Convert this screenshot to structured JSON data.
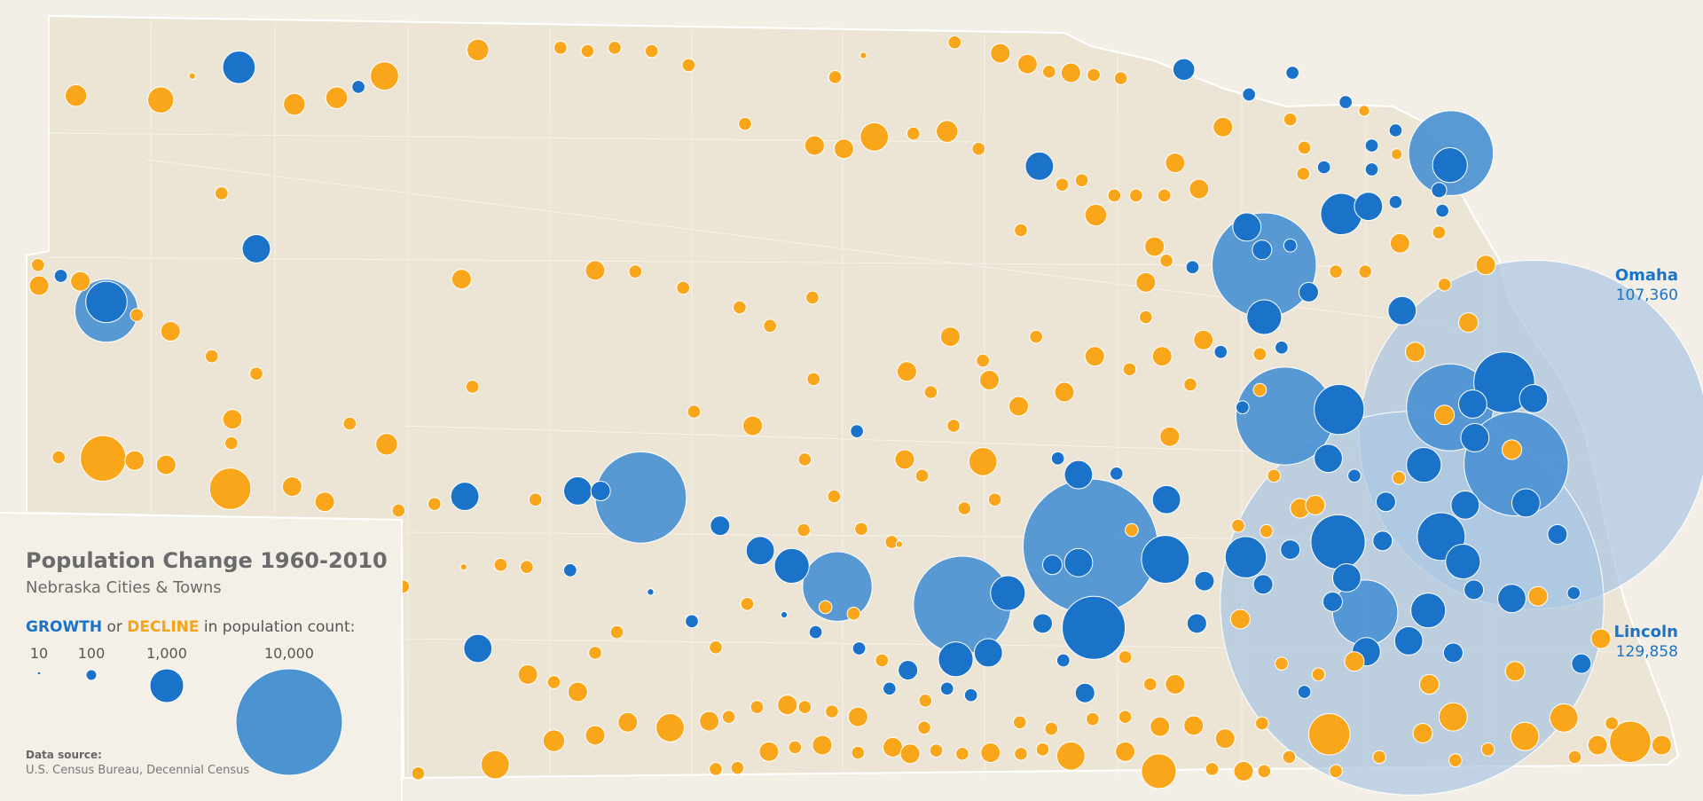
{
  "title": "Population Change 1960-2010",
  "subtitle": "Nebraska Cities & Towns",
  "legend": {
    "growth": "GROWTH",
    "or": "or",
    "decline": "DECLINE",
    "suffix": "in population count:",
    "sizes": [
      10,
      100,
      {
        "value": 1000,
        "label": "1,000"
      },
      {
        "value": 10000,
        "label": "10,000"
      }
    ]
  },
  "cities": [
    {
      "name": "Omaha",
      "value": 107360,
      "label": "107,360"
    },
    {
      "name": "Lincoln",
      "value": 129858,
      "label": "129,858"
    }
  ],
  "source": {
    "heading": "Data source:",
    "text": "U.S. Census Bureau, Decennial Census"
  }
}
